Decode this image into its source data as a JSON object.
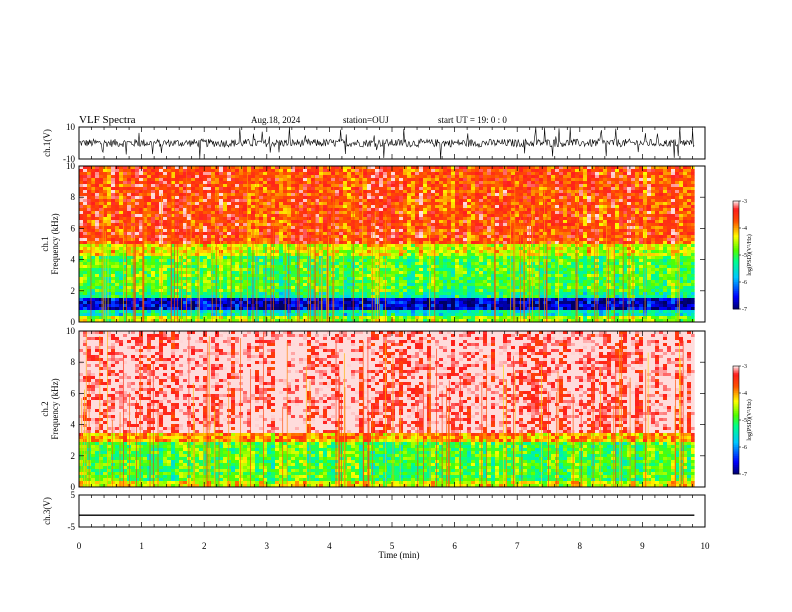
{
  "header": {
    "title": "VLF Spectra",
    "date": "Aug.18, 2024",
    "station": "station=OUJ",
    "start": "start UT = 19: 0 : 0"
  },
  "colors": {
    "spec_low": "#000080",
    "spec_mid": "#00ff80",
    "spec_high": "#ff2000",
    "spec_top": "#ffe0e0"
  },
  "chart_data": [
    {
      "type": "line",
      "name": "waveform-ch1",
      "ylabel": "ch.1(V)",
      "ylim": [
        -10,
        10
      ],
      "yticks": [
        "10",
        "-10"
      ],
      "xlim": [
        0,
        10
      ],
      "baseline": 0,
      "noise_amplitude": 2.5
    },
    {
      "type": "heatmap",
      "name": "spectrogram-ch1",
      "ylabel": "ch.1\nFrequency (kHz)",
      "ylabel_lines": [
        "ch.1",
        "Frequency (kHz)"
      ],
      "ylim": [
        0,
        10
      ],
      "yticks": [
        "0",
        "2",
        "4",
        "6",
        "8",
        "10"
      ],
      "xlim": [
        0,
        9.83
      ],
      "colorbar": {
        "label": "log(PSD)(V²/Hz)",
        "range": [
          -7,
          -3
        ],
        "ticks": [
          "-3",
          "-4",
          "-5",
          "-6",
          "-7"
        ]
      },
      "bands": [
        {
          "from_khz": 0,
          "to_khz": 0.4,
          "level": -4.6
        },
        {
          "from_khz": 0.4,
          "to_khz": 0.7,
          "level": -5.4
        },
        {
          "from_khz": 0.7,
          "to_khz": 1.5,
          "level": -6.7
        },
        {
          "from_khz": 1.5,
          "to_khz": 2.0,
          "level": -5.2
        },
        {
          "from_khz": 2.0,
          "to_khz": 4.3,
          "level": -4.9
        },
        {
          "from_khz": 4.3,
          "to_khz": 5.0,
          "level": -4.4
        },
        {
          "from_khz": 5.0,
          "to_khz": 10,
          "level": -3.6
        }
      ]
    },
    {
      "type": "heatmap",
      "name": "spectrogram-ch2",
      "ylabel": "ch.2\nFrequency (kHz)",
      "ylabel_lines": [
        "ch.2",
        "Frequency (kHz)"
      ],
      "ylim": [
        0,
        10
      ],
      "yticks": [
        "0",
        "2",
        "4",
        "6",
        "8",
        "10"
      ],
      "xlim": [
        0,
        9.83
      ],
      "colorbar": {
        "label": "log(PSD)(V²/Hz)",
        "range": [
          -7,
          -3
        ],
        "ticks": [
          "-3",
          "-4",
          "-5",
          "-6",
          "-7"
        ]
      },
      "bands": [
        {
          "from_khz": 0,
          "to_khz": 0.3,
          "level": -4.4
        },
        {
          "from_khz": 0.3,
          "to_khz": 2.8,
          "level": -4.9
        },
        {
          "from_khz": 2.8,
          "to_khz": 3.5,
          "level": -4.0
        },
        {
          "from_khz": 3.5,
          "to_khz": 10,
          "level": -3.0
        }
      ]
    },
    {
      "type": "line",
      "name": "waveform-ch3",
      "ylabel": "ch.3(V)",
      "ylim": [
        -5,
        5
      ],
      "yticks": [
        "5",
        "-5"
      ],
      "xlim": [
        0,
        10
      ],
      "baseline": -1.3,
      "noise_amplitude": 0
    }
  ],
  "xaxis": {
    "label": "Time (min)",
    "ticks": [
      "0",
      "1",
      "2",
      "3",
      "4",
      "5",
      "6",
      "7",
      "8",
      "9",
      "10"
    ],
    "range": [
      0,
      10
    ]
  }
}
